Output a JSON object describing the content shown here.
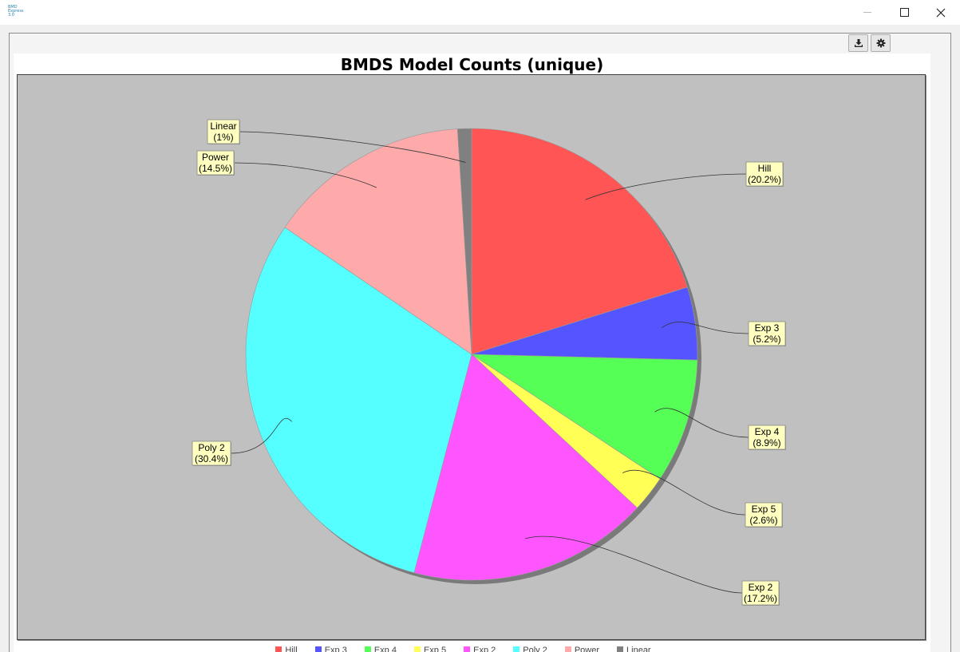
{
  "window": {
    "logo_text": "BMD Express 3.0",
    "controls": [
      "minimize",
      "maximize",
      "close"
    ]
  },
  "toolbar": {
    "download_icon": "download-icon",
    "settings_icon": "gear-icon"
  },
  "chart_data": {
    "type": "pie",
    "title": "BMDS Model Counts (unique)",
    "categories": [
      "Hill",
      "Exp 3",
      "Exp 4",
      "Exp 5",
      "Exp 2",
      "Poly 2",
      "Power",
      "Linear"
    ],
    "values": [
      20.2,
      5.2,
      8.9,
      2.6,
      17.2,
      30.4,
      14.5,
      1.0
    ],
    "labels": [
      "(20.2%)",
      "(5.2%)",
      "(8.9%)",
      "(2.6%)",
      "(17.2%)",
      "(30.4%)",
      "(14.5%)",
      "(1%)"
    ],
    "colors": [
      "#ff5555",
      "#5555ff",
      "#55ff55",
      "#ffff55",
      "#ff55ff",
      "#55ffff",
      "#ffaaaa",
      "#808080"
    ],
    "legend": "bottom",
    "legend_items": [
      "Hill",
      "Exp 3",
      "Exp 4",
      "Exp 5",
      "Exp 2",
      "Poly 2",
      "Power",
      "Linear"
    ]
  }
}
